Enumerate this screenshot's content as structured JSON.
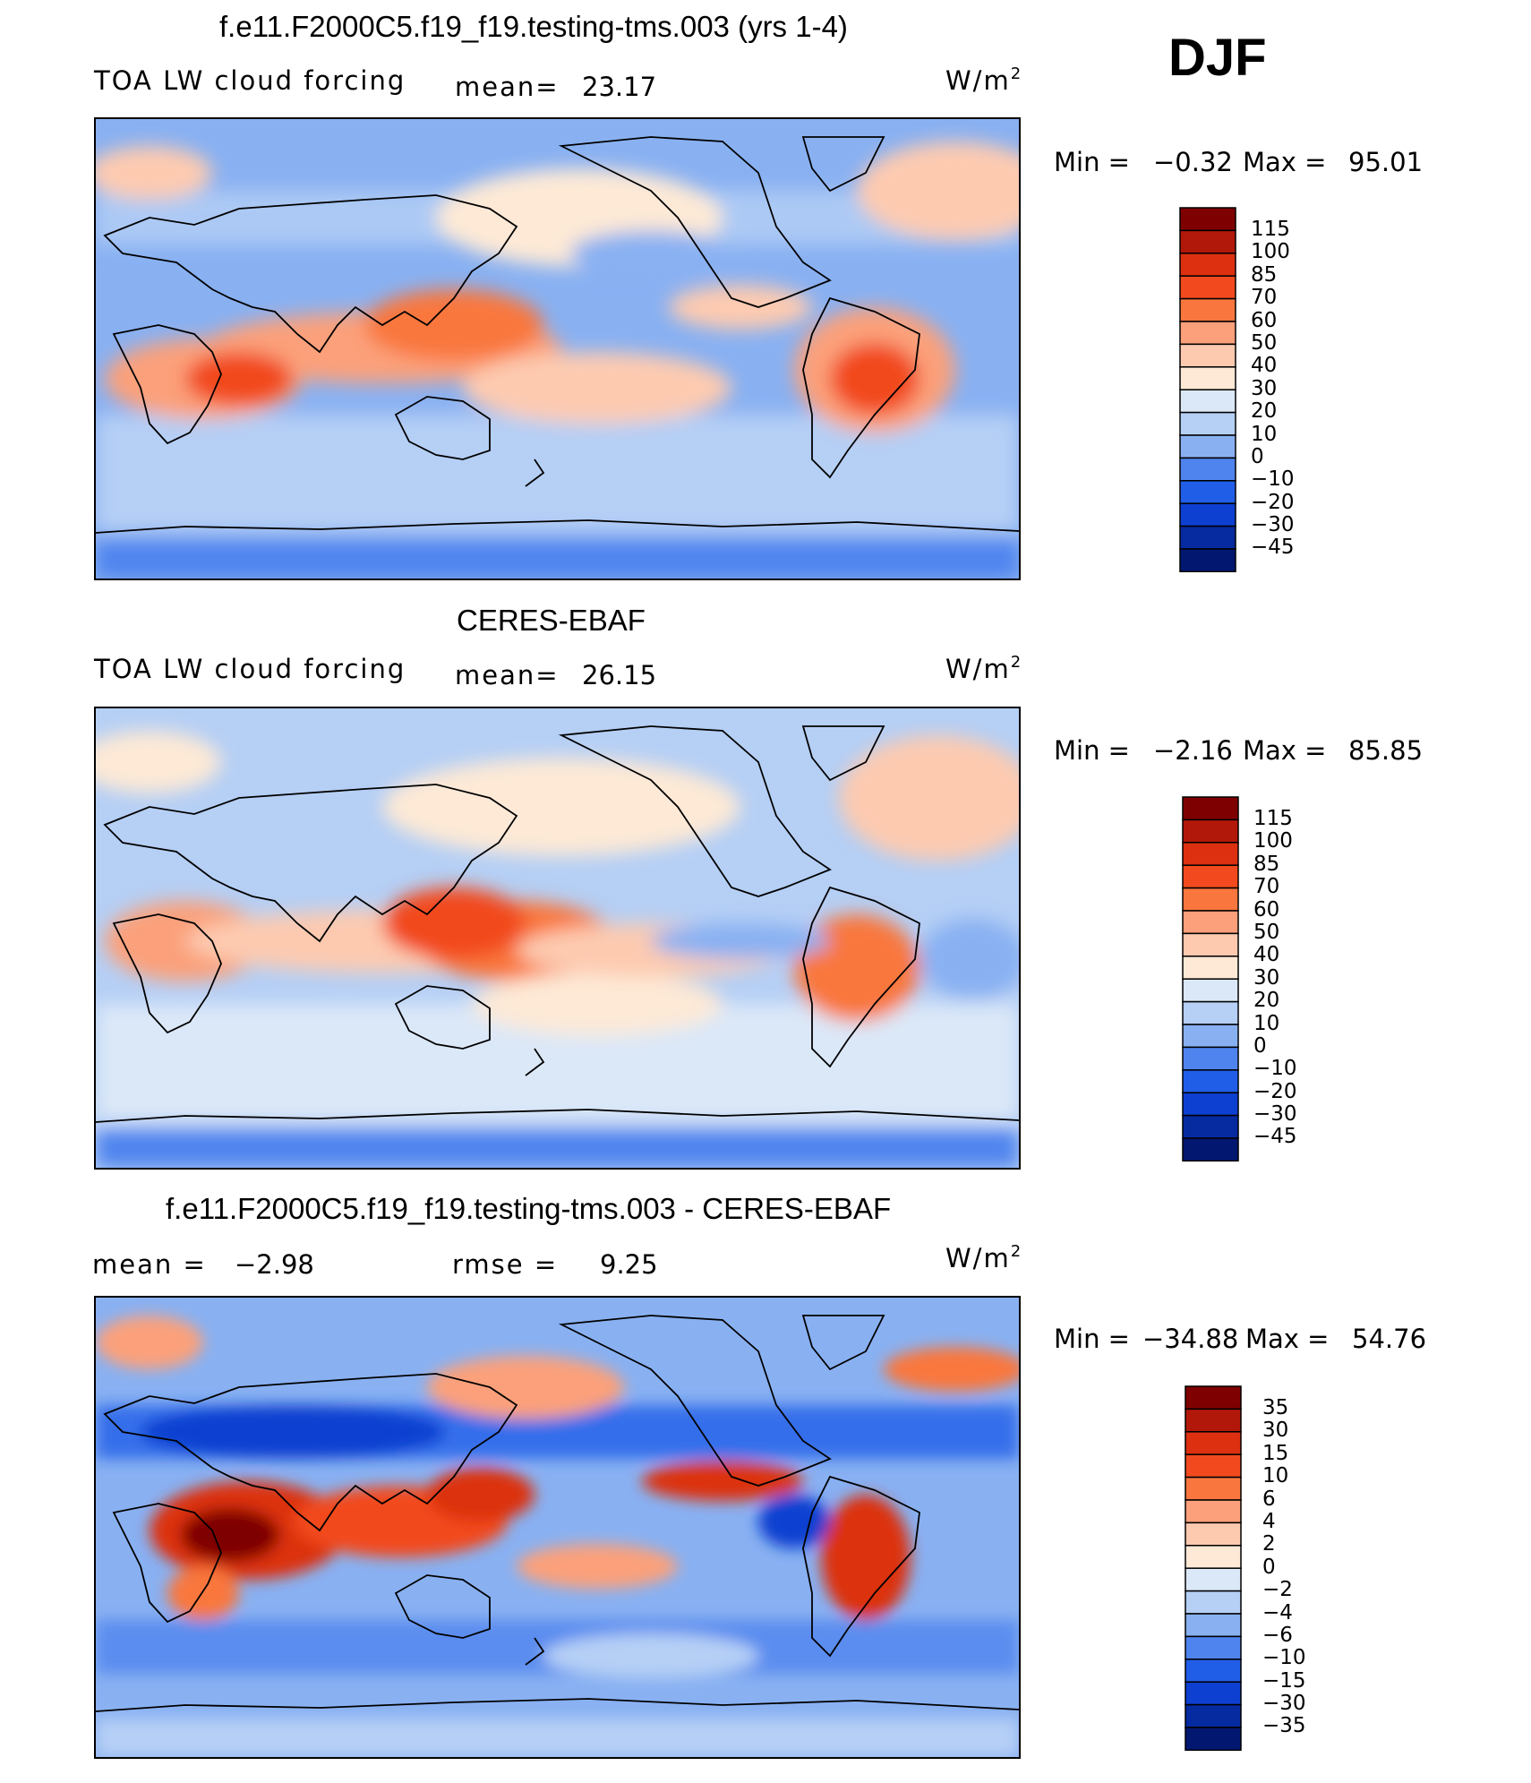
{
  "season": "DJF",
  "units": "W/m",
  "units_exp": "2",
  "panels": [
    {
      "title": "f.e11.F2000C5.f19_f19.testing-tms.003 (yrs 1-4)",
      "left_label": "TOA LW cloud forcing",
      "mid_label": "mean=",
      "mid_value": "23.17",
      "min_label": "Min =",
      "min_value": "−0.32",
      "max_label": "Max =",
      "max_value": "95.01"
    },
    {
      "title": "CERES-EBAF",
      "left_label": "TOA LW cloud forcing",
      "mid_label": "mean=",
      "mid_value": "26.15",
      "min_label": "Min =",
      "min_value": "−2.16",
      "max_label": "Max =",
      "max_value": "85.85"
    },
    {
      "title": "f.e11.F2000C5.f19_f19.testing-tms.003 - CERES-EBAF",
      "left_label": "mean =",
      "left_value": "−2.98",
      "mid_label": "rmse =",
      "mid_value": "9.25",
      "min_label": "Min =",
      "min_value": "−34.88",
      "max_label": "Max =",
      "max_value": "54.76"
    }
  ],
  "colorbars": {
    "field_levels": [
      "115",
      "100",
      "85",
      "70",
      "60",
      "50",
      "40",
      "30",
      "20",
      "10",
      "0",
      "−10",
      "−20",
      "−30",
      "−45"
    ],
    "diff_levels": [
      "35",
      "30",
      "15",
      "10",
      "6",
      "4",
      "2",
      "0",
      "−2",
      "−4",
      "−6",
      "−10",
      "−15",
      "−30",
      "−35"
    ],
    "colors": [
      "#7f0000",
      "#b2180a",
      "#dc3010",
      "#f24a1e",
      "#f9773e",
      "#fba07a",
      "#fdcab0",
      "#fde9d6",
      "#dbe8f8",
      "#b5cff5",
      "#89b1f2",
      "#4f84ee",
      "#215ee8",
      "#0d3fd0",
      "#062aa0",
      "#021770"
    ]
  }
}
